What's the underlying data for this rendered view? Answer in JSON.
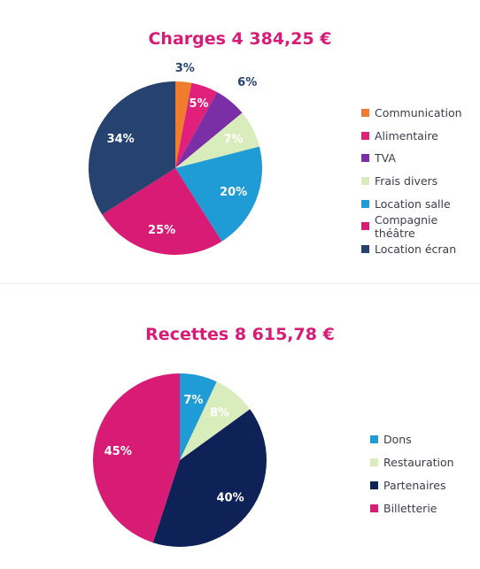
{
  "charts": [
    {
      "title": "Charges 4 384,25 €",
      "legend": [
        {
          "label": "Communication",
          "color": "#ee7d2d"
        },
        {
          "label": "Alimentaire",
          "color": "#e0207a"
        },
        {
          "label": "TVA",
          "color": "#7b2fa6"
        },
        {
          "label": "Frais divers",
          "color": "#d8edbb"
        },
        {
          "label": "Location salle",
          "color": "#1f9bd6"
        },
        {
          "label": "Compagnie théâtre",
          "color": "#d81b74"
        },
        {
          "label": "Location écran",
          "color": "#26426f"
        }
      ]
    },
    {
      "title": "Recettes 8 615,78 €",
      "legend": [
        {
          "label": "Dons",
          "color": "#1f9bd6"
        },
        {
          "label": "Restauration",
          "color": "#d8edbb"
        },
        {
          "label": "Partenaires",
          "color": "#0f2258"
        },
        {
          "label": "Billetterie",
          "color": "#d81b74"
        }
      ]
    }
  ],
  "chart_data": [
    {
      "type": "pie",
      "title": "Charges 4 384,25 €",
      "slices": [
        {
          "label": "Communication",
          "value": 3,
          "display": "3%",
          "color": "#ee7d2d"
        },
        {
          "label": "Alimentaire",
          "value": 5,
          "display": "5%",
          "color": "#e0207a"
        },
        {
          "label": "TVA",
          "value": 6,
          "display": "6%",
          "color": "#7b2fa6"
        },
        {
          "label": "Frais divers",
          "value": 7,
          "display": "7%",
          "color": "#d8edbb"
        },
        {
          "label": "Location salle",
          "value": 20,
          "display": "20%",
          "color": "#1f9bd6"
        },
        {
          "label": "Compagnie théâtre",
          "value": 25,
          "display": "25%",
          "color": "#d81b74"
        },
        {
          "label": "Location écran",
          "value": 34,
          "display": "34%",
          "color": "#26426f"
        }
      ],
      "legend_position": "right"
    },
    {
      "type": "pie",
      "title": "Recettes 8 615,78 €",
      "slices": [
        {
          "label": "Dons",
          "value": 7,
          "display": "7%",
          "color": "#1f9bd6"
        },
        {
          "label": "Restauration",
          "value": 8,
          "display": "8%",
          "color": "#d8edbb"
        },
        {
          "label": "Partenaires",
          "value": 40,
          "display": "40%",
          "color": "#0f2258"
        },
        {
          "label": "Billetterie",
          "value": 45,
          "display": "45%",
          "color": "#d81b74"
        }
      ],
      "legend_position": "right"
    }
  ]
}
